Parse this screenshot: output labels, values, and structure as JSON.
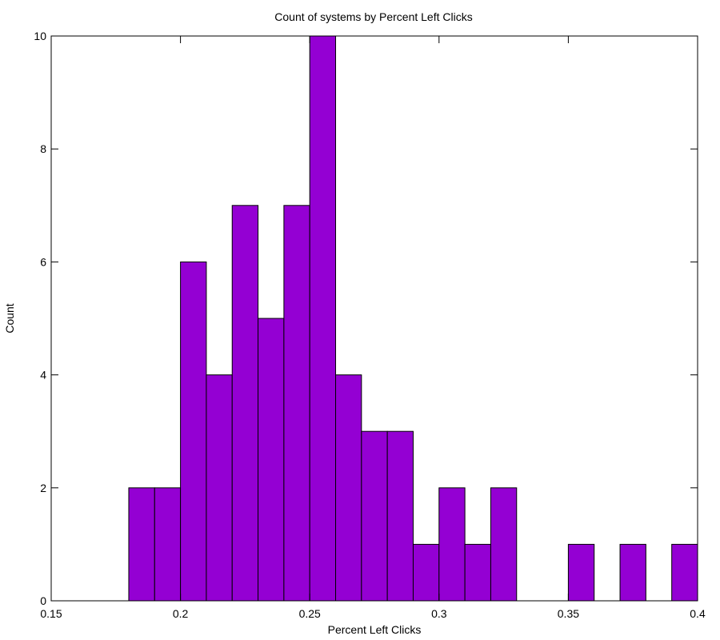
{
  "chart_data": {
    "type": "bar",
    "title": "Count of systems by Percent Left Clicks",
    "xlabel": "Percent Left Clicks",
    "ylabel": "Count",
    "xlim": [
      0.15,
      0.4
    ],
    "ylim": [
      0,
      10
    ],
    "xticks": [
      "0.15",
      "0.2",
      "0.25",
      "0.3",
      "0.35",
      "0.4"
    ],
    "yticks": [
      "0",
      "2",
      "4",
      "6",
      "8",
      "10"
    ],
    "bin_width": 0.01,
    "bins": [
      {
        "x0": 0.18,
        "x1": 0.19,
        "count": 2
      },
      {
        "x0": 0.19,
        "x1": 0.2,
        "count": 2
      },
      {
        "x0": 0.2,
        "x1": 0.21,
        "count": 6
      },
      {
        "x0": 0.21,
        "x1": 0.22,
        "count": 4
      },
      {
        "x0": 0.22,
        "x1": 0.23,
        "count": 7
      },
      {
        "x0": 0.23,
        "x1": 0.24,
        "count": 5
      },
      {
        "x0": 0.24,
        "x1": 0.25,
        "count": 7
      },
      {
        "x0": 0.25,
        "x1": 0.26,
        "count": 10
      },
      {
        "x0": 0.26,
        "x1": 0.27,
        "count": 4
      },
      {
        "x0": 0.27,
        "x1": 0.28,
        "count": 3
      },
      {
        "x0": 0.28,
        "x1": 0.29,
        "count": 3
      },
      {
        "x0": 0.29,
        "x1": 0.3,
        "count": 1
      },
      {
        "x0": 0.3,
        "x1": 0.31,
        "count": 2
      },
      {
        "x0": 0.31,
        "x1": 0.32,
        "count": 1
      },
      {
        "x0": 0.32,
        "x1": 0.33,
        "count": 2
      },
      {
        "x0": 0.35,
        "x1": 0.36,
        "count": 1
      },
      {
        "x0": 0.37,
        "x1": 0.38,
        "count": 1
      },
      {
        "x0": 0.39,
        "x1": 0.4,
        "count": 1
      }
    ],
    "grid": false,
    "legend": "none",
    "bar_color": "#9400d3",
    "bar_edge_color": "#000000"
  }
}
